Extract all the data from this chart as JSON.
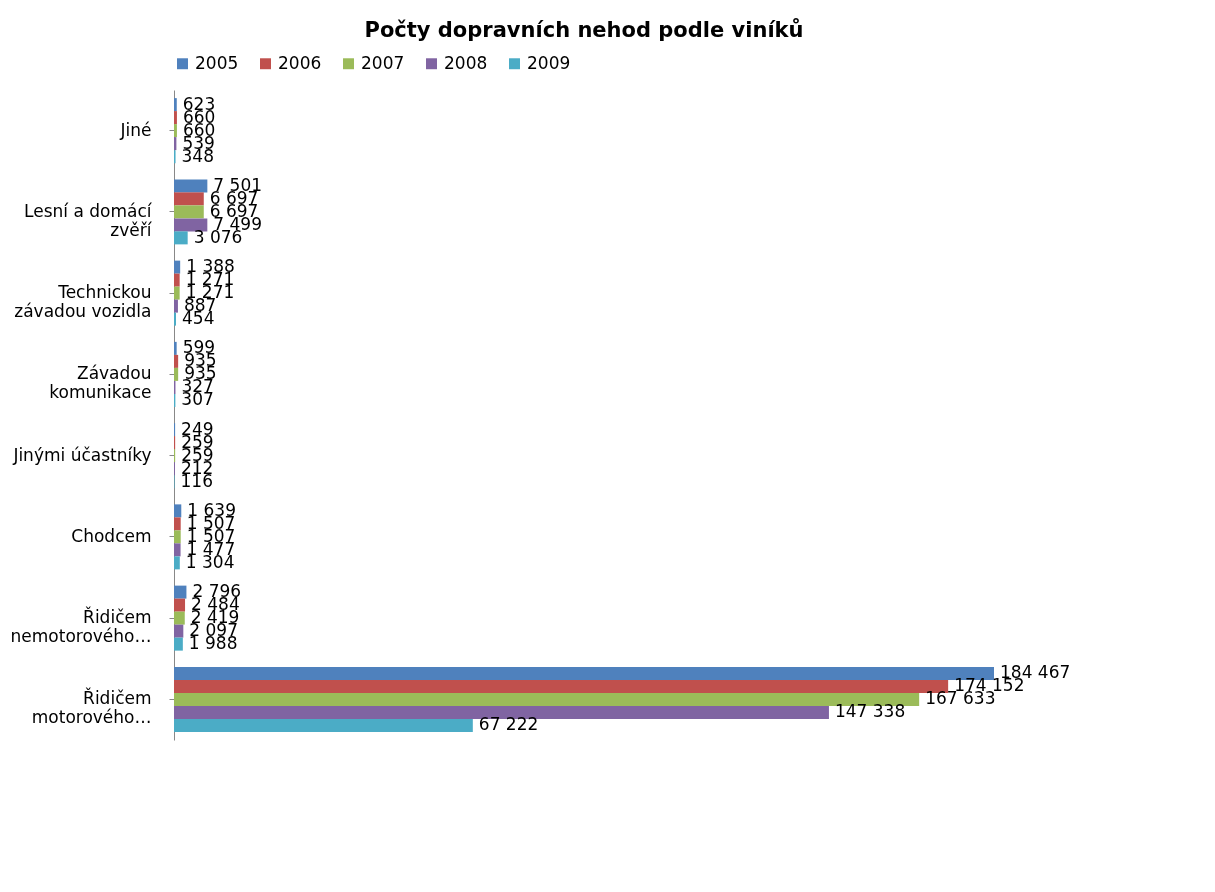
{
  "chart_data": {
    "type": "bar",
    "orientation": "horizontal",
    "title": "Počty dopravních nehod podle viníků",
    "categories": [
      "Jiné",
      "Lesní a domácí zvěří",
      "Technickou závadou vozidla",
      "Závadou komunikace",
      "Jinými účastníky",
      "Chodcem",
      "Řidičem nemotorového…",
      "Řidičem motorového…"
    ],
    "series": [
      {
        "name": "2005",
        "color": "#4f81bd",
        "values": [
          623,
          7501,
          1388,
          599,
          249,
          1639,
          2796,
          184467
        ],
        "value_labels": [
          "623",
          "7 501",
          "1 388",
          "599",
          "249",
          "1 639",
          "2 796",
          "184 467"
        ]
      },
      {
        "name": "2006",
        "color": "#c0504d",
        "values": [
          660,
          6697,
          1271,
          935,
          259,
          1507,
          2484,
          174152
        ],
        "value_labels": [
          "660",
          "6 697",
          "1 271",
          "935",
          "259",
          "1 507",
          "2 484",
          "174 152"
        ]
      },
      {
        "name": "2007",
        "color": "#9bbb59",
        "values": [
          660,
          6697,
          1271,
          935,
          259,
          1507,
          2419,
          167633
        ],
        "value_labels": [
          "660",
          "6 697",
          "1 271",
          "935",
          "259",
          "1 507",
          "2 419",
          "167 633"
        ]
      },
      {
        "name": "2008",
        "color": "#8064a2",
        "values": [
          539,
          7499,
          887,
          327,
          212,
          1477,
          2097,
          147338
        ],
        "value_labels": [
          "539",
          "7 499",
          "887",
          "327",
          "212",
          "1 477",
          "2 097",
          "147 338"
        ]
      },
      {
        "name": "2009",
        "color": "#4bacc6",
        "values": [
          348,
          3076,
          454,
          307,
          116,
          1304,
          1988,
          67222
        ],
        "value_labels": [
          "348",
          "3 076",
          "454",
          "307",
          "116",
          "1 304",
          "1 988",
          "67 222"
        ]
      }
    ],
    "legend": "top",
    "grid": false
  }
}
